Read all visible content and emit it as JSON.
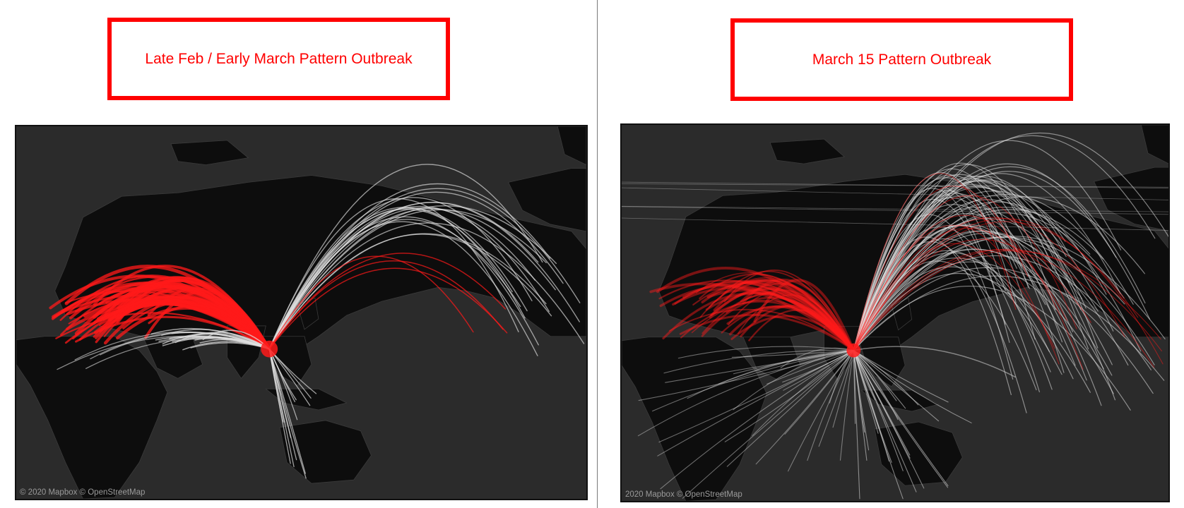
{
  "colors": {
    "box_border": "#ff0000",
    "title_text": "#ff0000",
    "ocean": "#2b2b2b",
    "land": "#0d0d0d",
    "arc_white": "#e0e0e0",
    "arc_red": "#ff1a1a"
  },
  "panels": {
    "left": {
      "title": "Late Feb / Early March Pattern Outbreak",
      "attribution": "© 2020 Mapbox  © OpenStreetMap"
    },
    "right": {
      "title": "March 15 Pattern Outbreak",
      "attribution": "2020 Mapbox © OpenStreetMap"
    }
  }
}
